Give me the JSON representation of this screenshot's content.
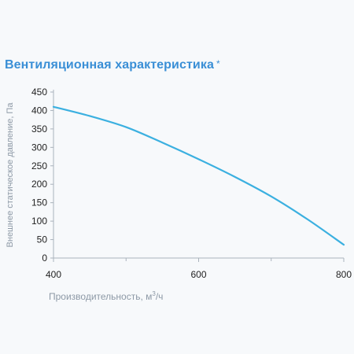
{
  "title": "Вентиляционная характеристика",
  "title_mark": "*",
  "colors": {
    "title": "#3a8fd6",
    "line": "#3bb0e0",
    "axis_text": "#8d99a6",
    "tick_text": "#222222",
    "grid": "#d2d9e0",
    "axis": "#aab3bc"
  },
  "chart_data": {
    "type": "line",
    "xlabel": {
      "prefix": "Производительность, м",
      "sup": "3",
      "suffix": "/ч"
    },
    "ylabel": "Внешнее статическое давление, Па",
    "xlim": [
      400,
      800
    ],
    "ylim": [
      0,
      450
    ],
    "x_ticks": [
      400,
      600,
      800
    ],
    "y_ticks": [
      0,
      50,
      100,
      150,
      200,
      250,
      300,
      350,
      400,
      450
    ],
    "grid": false,
    "series": [
      {
        "x": [
          400,
          450,
          500,
          550,
          600,
          650,
          700,
          750,
          800
        ],
        "y": [
          410,
          385,
          355,
          313,
          268,
          220,
          167,
          105,
          36
        ]
      }
    ]
  }
}
